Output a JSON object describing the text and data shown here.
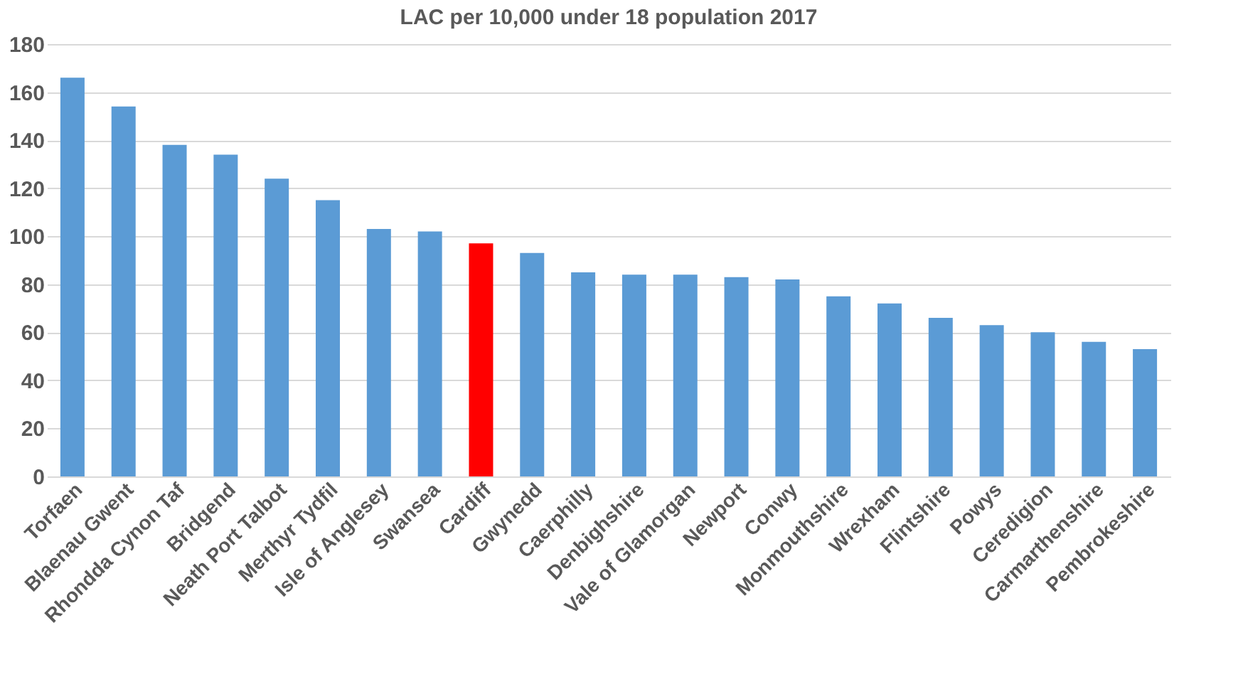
{
  "chart_data": {
    "type": "bar",
    "title": "LAC per 10,000 under 18 population 2017",
    "categories": [
      "Torfaen",
      "Blaenau Gwent",
      "Rhondda Cynon Taf",
      "Bridgend",
      "Neath Port Talbot",
      "Merthyr Tydfil",
      "Isle of Anglesey",
      "Swansea",
      "Cardiff",
      "Gwynedd",
      "Caerphilly",
      "Denbighshire",
      "Vale of Glamorgan",
      "Newport",
      "Conwy",
      "Monmouthshire",
      "Wrexham",
      "Flintshire",
      "Powys",
      "Ceredigion",
      "Carmarthenshire",
      "Pembrokeshire"
    ],
    "values": [
      166,
      154,
      138,
      134,
      124,
      115,
      103,
      102,
      97,
      93,
      85,
      84,
      84,
      83,
      82,
      75,
      72,
      66,
      63,
      60,
      56,
      53
    ],
    "colors": [
      "#5b9bd5",
      "#5b9bd5",
      "#5b9bd5",
      "#5b9bd5",
      "#5b9bd5",
      "#5b9bd5",
      "#5b9bd5",
      "#5b9bd5",
      "#ff0000",
      "#5b9bd5",
      "#5b9bd5",
      "#5b9bd5",
      "#5b9bd5",
      "#5b9bd5",
      "#5b9bd5",
      "#5b9bd5",
      "#5b9bd5",
      "#5b9bd5",
      "#5b9bd5",
      "#5b9bd5",
      "#5b9bd5",
      "#5b9bd5"
    ],
    "ylim": [
      0,
      180
    ],
    "yticks": [
      0,
      20,
      40,
      60,
      80,
      100,
      120,
      140,
      160,
      180
    ],
    "grid": "y"
  }
}
